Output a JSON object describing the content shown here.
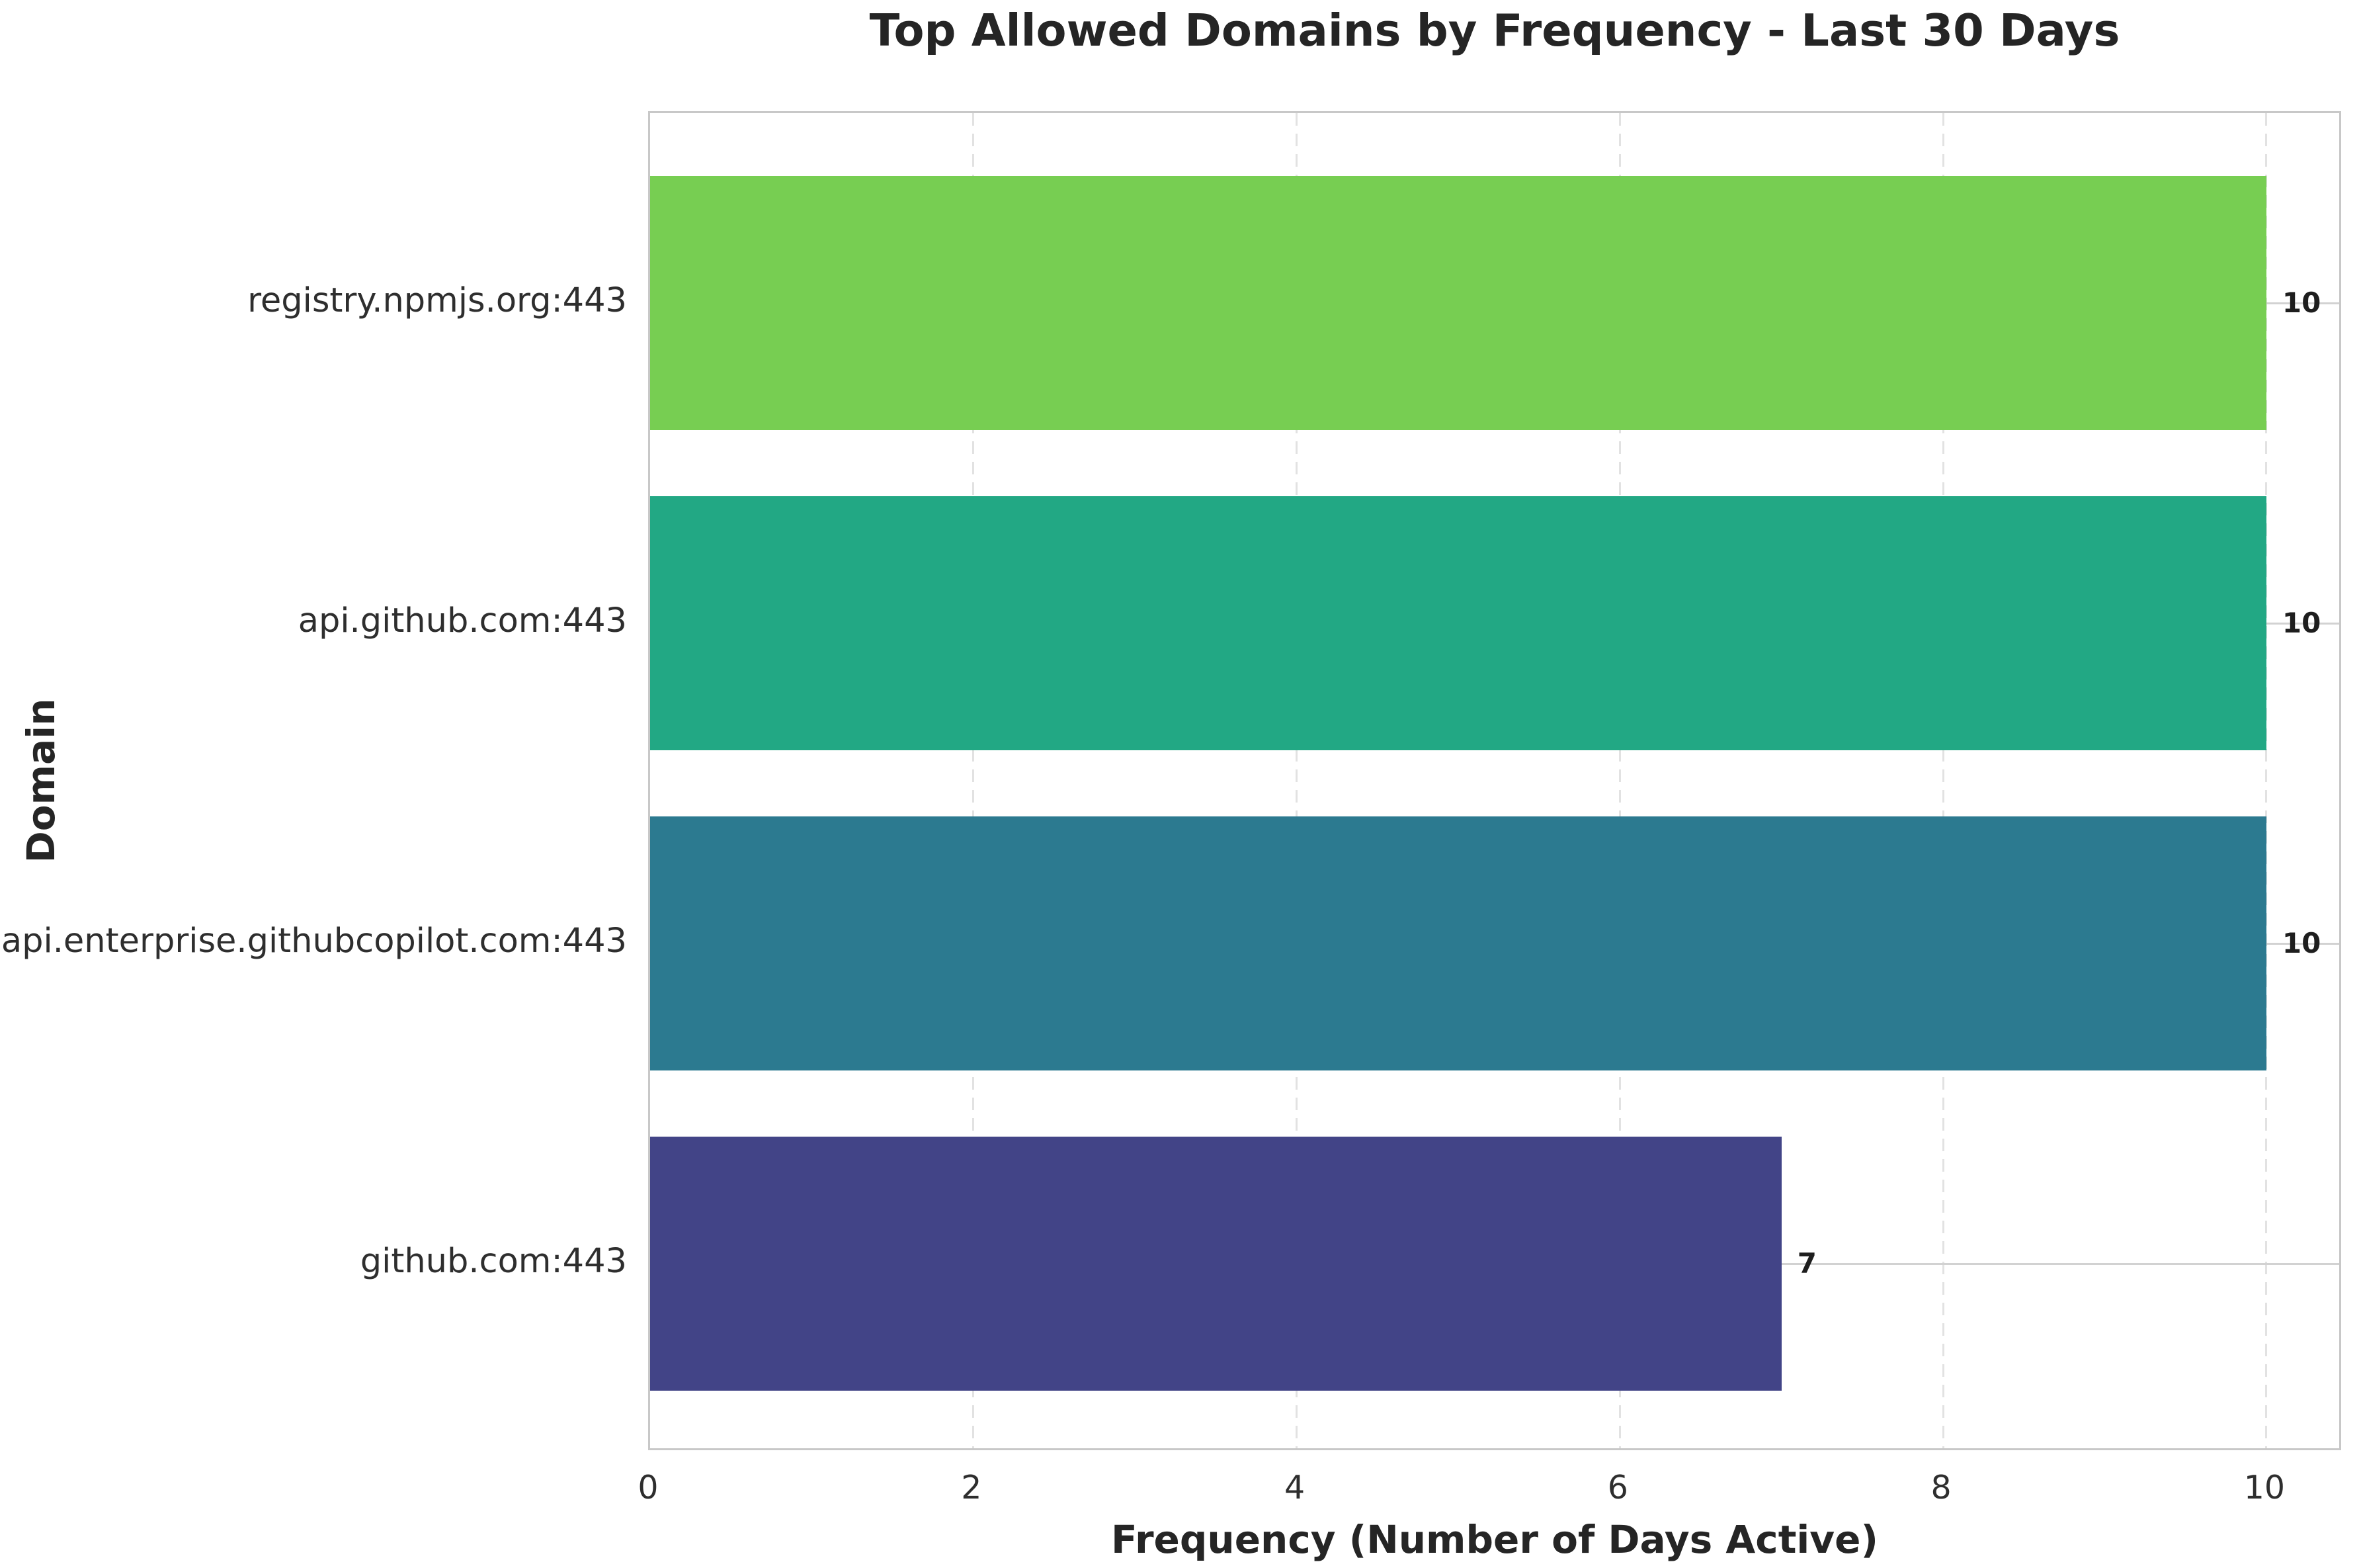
{
  "chart_data": {
    "type": "bar",
    "orientation": "horizontal",
    "title": "Top Allowed Domains by Frequency - Last 30 Days",
    "xlabel": "Frequency (Number of Days Active)",
    "ylabel": "Domain",
    "categories": [
      "registry.npmjs.org:443",
      "api.github.com:443",
      "api.enterprise.githubcopilot.com:443",
      "github.com:443"
    ],
    "values": [
      10,
      10,
      10,
      7
    ],
    "bar_value_labels": [
      "10",
      "10",
      "10",
      "7"
    ],
    "bar_colors": [
      "#77ce52",
      "#22a884",
      "#2c7a90",
      "#424487"
    ],
    "xticks": [
      0,
      2,
      4,
      6,
      8,
      10
    ],
    "xlim": [
      0,
      10.475
    ],
    "grid": {
      "x_gridlines": "dashed",
      "y_gridlines": "solid",
      "legend": "none"
    }
  }
}
